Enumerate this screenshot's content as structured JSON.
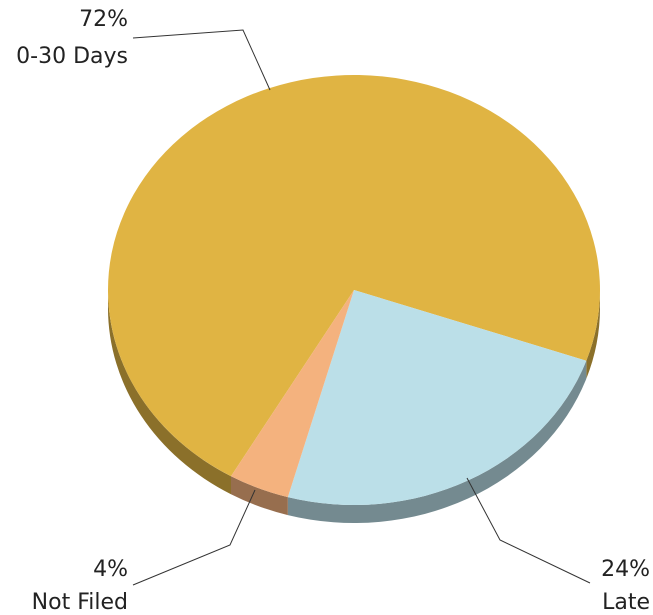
{
  "chart_data": {
    "type": "pie",
    "categories": [
      "0-30 Days",
      "Late",
      "Not Filed"
    ],
    "values": [
      72,
      24,
      4
    ],
    "value_labels": [
      "72%",
      "24%",
      "4%"
    ],
    "colors": [
      "#e0b443",
      "#bbdfe8",
      "#f4b27e"
    ]
  }
}
